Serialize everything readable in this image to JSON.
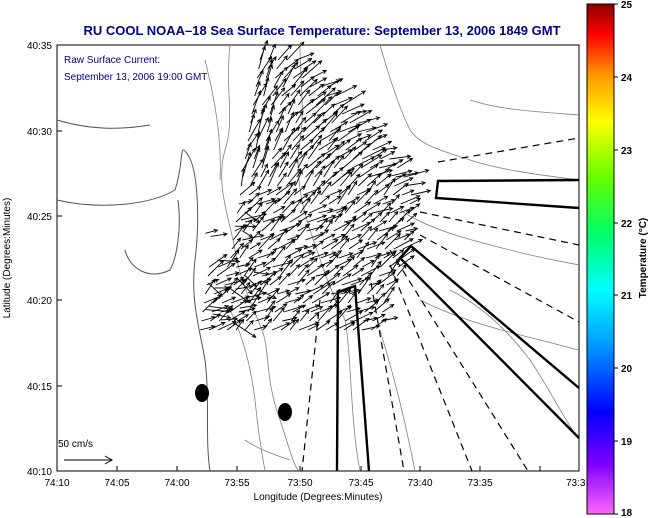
{
  "title": "RU COOL  NOAA–18  Sea Surface Temperature:  September 13, 2006 1849 GMT",
  "annotation": {
    "line1": "Raw Surface Current:",
    "line2": "September 13, 2006 19:00 GMT"
  },
  "axes": {
    "xlabel": "Longitude (Degrees:Minutes)",
    "ylabel": "Latitude (Degrees:Minutes)",
    "xticks": [
      "74:10",
      "74:05",
      "74:00",
      "73:55",
      "73:50",
      "73:45",
      "73:40",
      "73:35",
      "73:3"
    ],
    "yticks": [
      "40:35",
      "40:30",
      "40:25",
      "40:20",
      "40:15",
      "40:10"
    ]
  },
  "scale_arrow": {
    "label": "50 cm/s"
  },
  "colorbar": {
    "label": "Temperature (°C)",
    "ticks": [
      "25",
      "24",
      "23",
      "22",
      "21",
      "20",
      "19",
      "18"
    ],
    "range": [
      18,
      25
    ],
    "colors": [
      "#ff66ff",
      "#7a00ff",
      "#0000ff",
      "#0099ff",
      "#00ffff",
      "#00ff66",
      "#66ff00",
      "#ffff00",
      "#ff9900",
      "#ff0000",
      "#8b0000"
    ]
  },
  "map": {
    "land_color": "#ffffff",
    "contour_color": "#808080",
    "vector_color": "#000000"
  }
}
